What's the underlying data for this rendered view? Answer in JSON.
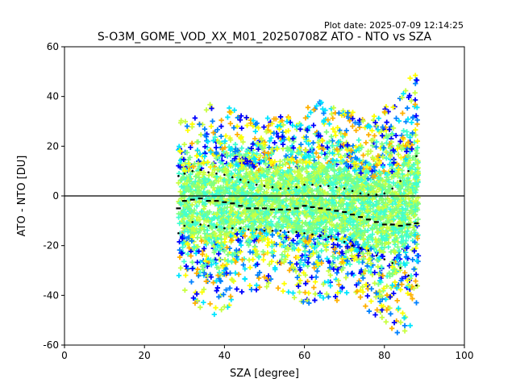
{
  "figure": {
    "plot_date": "Plot date: 2025-07-09 12:14:25",
    "title": "S-O3M_GOME_VOD_XX_M01_20250708Z ATO - NTO vs SZA"
  },
  "chart_data": {
    "type": "scatter",
    "title": "S-O3M_GOME_VOD_XX_M01_20250708Z ATO - NTO vs SZA",
    "xlabel": "SZA [degree]",
    "ylabel": "ATO - NTO [DU]",
    "xlim": [
      0,
      100
    ],
    "ylim": [
      -60,
      60
    ],
    "xticks": [
      0,
      20,
      40,
      60,
      80,
      100
    ],
    "yticks": [
      -60,
      -40,
      -20,
      0,
      20,
      40,
      60
    ],
    "grid": false,
    "reference_line_y": 0,
    "marker": "+",
    "scatter_colors": [
      "#0000ff",
      "#0080ff",
      "#00e5ff",
      "#40ffd0",
      "#80ff80",
      "#c8ff40",
      "#ffff00",
      "#ffb000"
    ],
    "point_cloud_envelope": {
      "sza": [
        28.5,
        32,
        36,
        40,
        44,
        48,
        52,
        56,
        60,
        64,
        68,
        72,
        76,
        80,
        84,
        87,
        88.5
      ],
      "upper": [
        30,
        32,
        38,
        36,
        34,
        30,
        32,
        32,
        36,
        38,
        35,
        34,
        30,
        36,
        40,
        50,
        48
      ],
      "lower": [
        -38,
        -42,
        -50,
        -46,
        -40,
        -38,
        -36,
        -40,
        -44,
        -42,
        -42,
        -44,
        -48,
        -54,
        -56,
        -52,
        -40
      ]
    },
    "series": [
      {
        "name": "",
        "style": "mean",
        "x": [
          28.5,
          30,
          32,
          34,
          36,
          38,
          40,
          42,
          44,
          46,
          48,
          50,
          52,
          54,
          56,
          58,
          60,
          62,
          64,
          66,
          68,
          70,
          72,
          74,
          76,
          78,
          80,
          82,
          84,
          86,
          88
        ],
        "y": [
          -5,
          -2,
          -1.5,
          -1,
          -2,
          -2,
          -2.5,
          -3,
          -4,
          -5,
          -5,
          -5,
          -5.5,
          -5.5,
          -5.5,
          -5,
          -4,
          -4.5,
          -5,
          -5.5,
          -6,
          -6.5,
          -7.5,
          -8.5,
          -9.5,
          -10.5,
          -11.5,
          -11.5,
          -12,
          -11.5,
          -11
        ]
      },
      {
        "name": "",
        "style": "upper",
        "x": [
          28.5,
          30,
          32,
          34,
          36,
          38,
          40,
          42,
          44,
          46,
          48,
          50,
          52,
          54,
          56,
          58,
          60,
          62,
          64,
          66,
          68,
          70,
          72,
          74,
          76,
          78,
          80,
          82,
          84,
          86,
          88
        ],
        "y": [
          8,
          9,
          10,
          10.5,
          9.5,
          9,
          8.5,
          7.5,
          6.5,
          5.5,
          4.5,
          4,
          3.5,
          3,
          3,
          3.5,
          4.5,
          4.5,
          4,
          4,
          3.5,
          3,
          2,
          1,
          0.5,
          0.5,
          1,
          3,
          6,
          10,
          16
        ]
      },
      {
        "name": "",
        "style": "lower",
        "x": [
          28.5,
          30,
          32,
          34,
          36,
          38,
          40,
          42,
          44,
          46,
          48,
          50,
          52,
          54,
          56,
          58,
          60,
          62,
          64,
          66,
          68,
          70,
          72,
          74,
          76,
          78,
          80,
          82,
          84,
          86,
          88
        ],
        "y": [
          -15,
          -12,
          -10.5,
          -11.5,
          -12,
          -12.5,
          -13,
          -13,
          -13,
          -13.5,
          -13.5,
          -14,
          -14,
          -14,
          -14.5,
          -14.5,
          -15,
          -15.5,
          -16,
          -16.5,
          -17.5,
          -18.5,
          -20,
          -21,
          -22,
          -24,
          -25.5,
          -27,
          -29,
          -32,
          -36
        ]
      }
    ]
  }
}
